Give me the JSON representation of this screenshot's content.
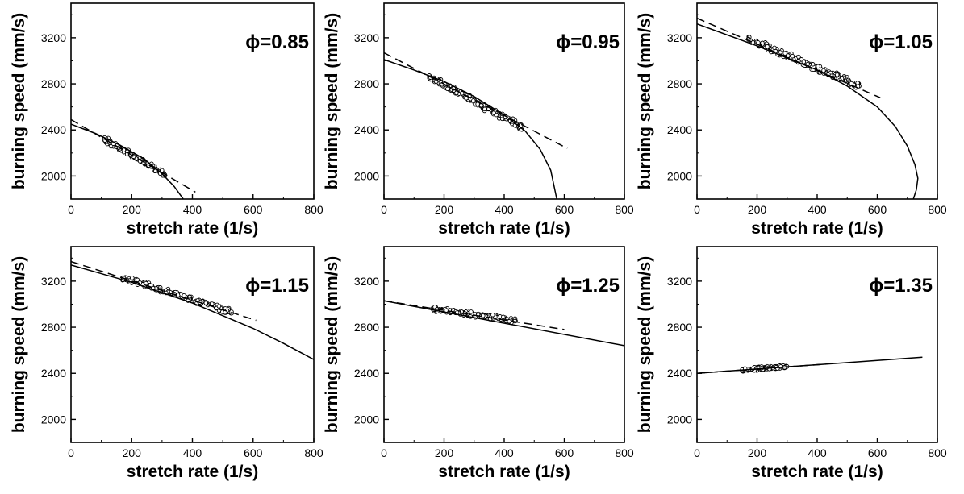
{
  "chart_data": [
    {
      "type": "scatter",
      "annotation": "ϕ=0.85",
      "xlabel": "stretch rate (1/s)",
      "ylabel": "burning speed (mm/s)",
      "xlim": [
        0,
        800
      ],
      "ylim": [
        1800,
        3500
      ],
      "xticks": [
        0,
        200,
        400,
        600,
        800
      ],
      "yticks": [
        2000,
        2400,
        2800,
        3200
      ],
      "points": {
        "x_range": [
          110,
          310
        ],
        "y_start": 2320,
        "y_end": 2010,
        "noise": 30,
        "count": 130
      },
      "lines": [
        {
          "style": "dashed",
          "x": [
            0,
            410
          ],
          "y": [
            2490,
            1860
          ]
        },
        {
          "style": "solid",
          "x": [
            0,
            80,
            160,
            240,
            300,
            340,
            370
          ],
          "y": [
            2450,
            2370,
            2270,
            2150,
            2020,
            1910,
            1800
          ]
        }
      ]
    },
    {
      "type": "scatter",
      "annotation": "ϕ=0.95",
      "xlabel": "stretch rate (1/s)",
      "ylabel": "burning speed (mm/s)",
      "xlim": [
        0,
        800
      ],
      "ylim": [
        1800,
        3500
      ],
      "xticks": [
        0,
        200,
        400,
        600,
        800
      ],
      "yticks": [
        2000,
        2400,
        2800,
        3200
      ],
      "points": {
        "x_range": [
          150,
          460
        ],
        "y_start": 2860,
        "y_end": 2420,
        "noise": 35,
        "count": 180
      },
      "lines": [
        {
          "style": "dashed",
          "x": [
            0,
            610
          ],
          "y": [
            3070,
            2240
          ]
        },
        {
          "style": "solid",
          "x": [
            0,
            100,
            200,
            300,
            400,
            470,
            520,
            555,
            575
          ],
          "y": [
            3010,
            2920,
            2820,
            2690,
            2530,
            2390,
            2230,
            2050,
            1800
          ]
        }
      ]
    },
    {
      "type": "scatter",
      "annotation": "ϕ=1.05",
      "xlabel": "stretch rate (1/s)",
      "ylabel": "burning speed (mm/s)",
      "xlim": [
        0,
        800
      ],
      "ylim": [
        1800,
        3500
      ],
      "xticks": [
        0,
        200,
        400,
        600,
        800
      ],
      "yticks": [
        2000,
        2400,
        2800,
        3200
      ],
      "points": {
        "x_range": [
          170,
          540
        ],
        "y_start": 3190,
        "y_end": 2780,
        "noise": 35,
        "count": 190
      },
      "lines": [
        {
          "style": "dashed",
          "x": [
            0,
            610
          ],
          "y": [
            3370,
            2680
          ]
        },
        {
          "style": "solid",
          "x": [
            0,
            200,
            400,
            500,
            600,
            660,
            700,
            725,
            735,
            730,
            720
          ],
          "y": [
            3320,
            3130,
            2920,
            2780,
            2600,
            2430,
            2260,
            2100,
            1980,
            1880,
            1800
          ]
        }
      ]
    },
    {
      "type": "scatter",
      "annotation": "ϕ=1.15",
      "xlabel": "stretch rate (1/s)",
      "ylabel": "burning speed (mm/s)",
      "xlim": [
        0,
        800
      ],
      "ylim": [
        1800,
        3500
      ],
      "xticks": [
        0,
        200,
        400,
        600,
        800
      ],
      "yticks": [
        2000,
        2400,
        2800,
        3200
      ],
      "points": {
        "x_range": [
          170,
          530
        ],
        "y_start": 3230,
        "y_end": 2930,
        "noise": 30,
        "count": 170
      },
      "lines": [
        {
          "style": "dashed",
          "x": [
            0,
            610
          ],
          "y": [
            3370,
            2860
          ]
        },
        {
          "style": "solid",
          "x": [
            0,
            200,
            400,
            600,
            700,
            800
          ],
          "y": [
            3340,
            3190,
            3010,
            2790,
            2660,
            2520
          ]
        }
      ]
    },
    {
      "type": "scatter",
      "annotation": "ϕ=1.25",
      "xlabel": "stretch rate (1/s)",
      "ylabel": "burning speed (mm/s)",
      "xlim": [
        0,
        800
      ],
      "ylim": [
        1800,
        3500
      ],
      "xticks": [
        0,
        200,
        400,
        600,
        800
      ],
      "yticks": [
        2000,
        2400,
        2800,
        3200
      ],
      "points": {
        "x_range": [
          160,
          440
        ],
        "y_start": 2960,
        "y_end": 2860,
        "noise": 25,
        "count": 170
      },
      "lines": [
        {
          "style": "dashed",
          "x": [
            0,
            600
          ],
          "y": [
            3030,
            2780
          ]
        },
        {
          "style": "solid",
          "x": [
            0,
            800
          ],
          "y": [
            3030,
            2640
          ]
        }
      ]
    },
    {
      "type": "scatter",
      "annotation": "ϕ=1.35",
      "xlabel": "stretch rate (1/s)",
      "ylabel": "burning speed (mm/s)",
      "xlim": [
        0,
        800
      ],
      "ylim": [
        1800,
        3500
      ],
      "xticks": [
        0,
        200,
        400,
        600,
        800
      ],
      "yticks": [
        2000,
        2400,
        2800,
        3200
      ],
      "points": {
        "x_range": [
          150,
          300
        ],
        "y_start": 2430,
        "y_end": 2460,
        "noise": 18,
        "count": 150
      },
      "lines": [
        {
          "style": "dashed",
          "x": [
            0,
            430
          ],
          "y": [
            2400,
            2480
          ]
        },
        {
          "style": "solid",
          "x": [
            0,
            750
          ],
          "y": [
            2400,
            2540
          ]
        }
      ]
    }
  ]
}
